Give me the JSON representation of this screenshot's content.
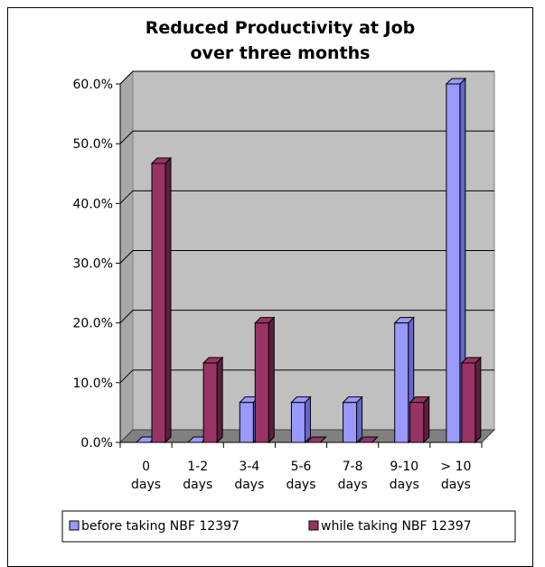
{
  "chart_data": {
    "type": "bar",
    "title_lines": [
      "Reduced Productivity at Job",
      "over three months"
    ],
    "categories": [
      [
        "0",
        "days"
      ],
      [
        "1-2",
        "days"
      ],
      [
        "3-4",
        "days"
      ],
      [
        "5-6",
        "days"
      ],
      [
        "7-8",
        "days"
      ],
      [
        "9-10",
        "days"
      ],
      [
        "> 10",
        "days"
      ]
    ],
    "series": [
      {
        "name": "before taking NBF 12397",
        "values": [
          0.0,
          0.0,
          6.7,
          6.7,
          6.7,
          20.0,
          60.0
        ]
      },
      {
        "name": "while taking NBF 12397",
        "values": [
          46.7,
          13.3,
          20.0,
          0.0,
          0.0,
          6.7,
          13.3
        ]
      }
    ],
    "yticks": [
      "0.0%",
      "10.0%",
      "20.0%",
      "30.0%",
      "40.0%",
      "50.0%",
      "60.0%"
    ],
    "ylim": [
      0,
      60
    ],
    "grid": true,
    "legend_position": "bottom",
    "colors": {
      "series1": "#9999ff",
      "series1_dark": "#6666cc",
      "series2": "#993366",
      "series2_dark": "#5c1f3d",
      "plot_background": "#c0c0c0",
      "side_wall": "#a8a8a8",
      "floor": "#808080",
      "gridline": "#000000"
    }
  }
}
